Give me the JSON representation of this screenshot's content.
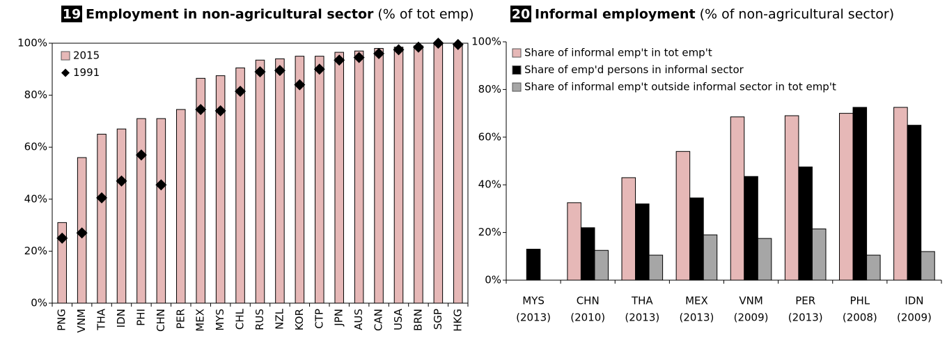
{
  "chart_data": [
    {
      "type": "bar",
      "number": "19",
      "title": "Employment in non-agricultural sector",
      "subtitle": "(% of tot emp)",
      "categories": [
        "PNG",
        "VNM",
        "THA",
        "IDN",
        "PHI",
        "CHN",
        "PER",
        "MEX",
        "MYS",
        "CHL",
        "RUS",
        "NZL",
        "KOR",
        "CTP",
        "JPN",
        "AUS",
        "CAN",
        "USA",
        "BRN",
        "SGP",
        "HKG"
      ],
      "series": [
        {
          "name": "2015",
          "color": "#e6b8b7",
          "marker": "bar",
          "values": [
            31,
            56,
            65,
            67,
            71,
            71,
            74.5,
            86.5,
            87.5,
            90.5,
            93.5,
            94,
            95,
            95,
            96.5,
            97,
            98,
            98.5,
            99,
            99.5,
            99.5
          ]
        },
        {
          "name": "1991",
          "color": "#000000",
          "marker": "diamond",
          "values": [
            25,
            27,
            40.5,
            47,
            57,
            45.5,
            null,
            74.5,
            74,
            81.5,
            89,
            89.5,
            84,
            90,
            93.5,
            94.5,
            96,
            97.5,
            98.5,
            100,
            99.5
          ]
        }
      ],
      "ylim": [
        0,
        100
      ],
      "yticks": [
        {
          "value": 0,
          "label": "0%"
        },
        {
          "value": 20,
          "label": "20%"
        },
        {
          "value": 40,
          "label": "40%"
        },
        {
          "value": 60,
          "label": "60%"
        },
        {
          "value": 80,
          "label": "80%"
        },
        {
          "value": 100,
          "label": "100%"
        }
      ],
      "grid": false
    },
    {
      "type": "bar",
      "number": "20",
      "title": "Informal employment",
      "subtitle": "(% of non-agricultural sector)",
      "categories": [
        "MYS",
        "CHN",
        "THA",
        "MEX",
        "VNM",
        "PER",
        "PHL",
        "IDN"
      ],
      "category_years": [
        "(2013)",
        "(2010)",
        "(2013)",
        "(2013)",
        "(2009)",
        "(2013)",
        "(2008)",
        "(2009)"
      ],
      "series": [
        {
          "name": "Share of informal emp't in tot emp't",
          "color": "#e6b8b7",
          "values": [
            null,
            32.5,
            43,
            54,
            68.5,
            69,
            70,
            72.5
          ]
        },
        {
          "name": "Share of emp'd persons in informal sector",
          "color": "#000000",
          "values": [
            13,
            22,
            32,
            34.5,
            43.5,
            47.5,
            72.5,
            65
          ]
        },
        {
          "name": "Share of informal emp't outside informal sector in tot emp't",
          "color": "#a6a6a6",
          "values": [
            null,
            12.5,
            10.5,
            19,
            17.5,
            21.5,
            10.5,
            12
          ]
        }
      ],
      "ylim": [
        0,
        100
      ],
      "yticks": [
        {
          "value": 0,
          "label": "0%"
        },
        {
          "value": 20,
          "label": "20%"
        },
        {
          "value": 40,
          "label": "40%"
        },
        {
          "value": 60,
          "label": "60%"
        },
        {
          "value": 80,
          "label": "80%"
        },
        {
          "value": 100,
          "label": "100%"
        }
      ],
      "grid": false
    }
  ]
}
